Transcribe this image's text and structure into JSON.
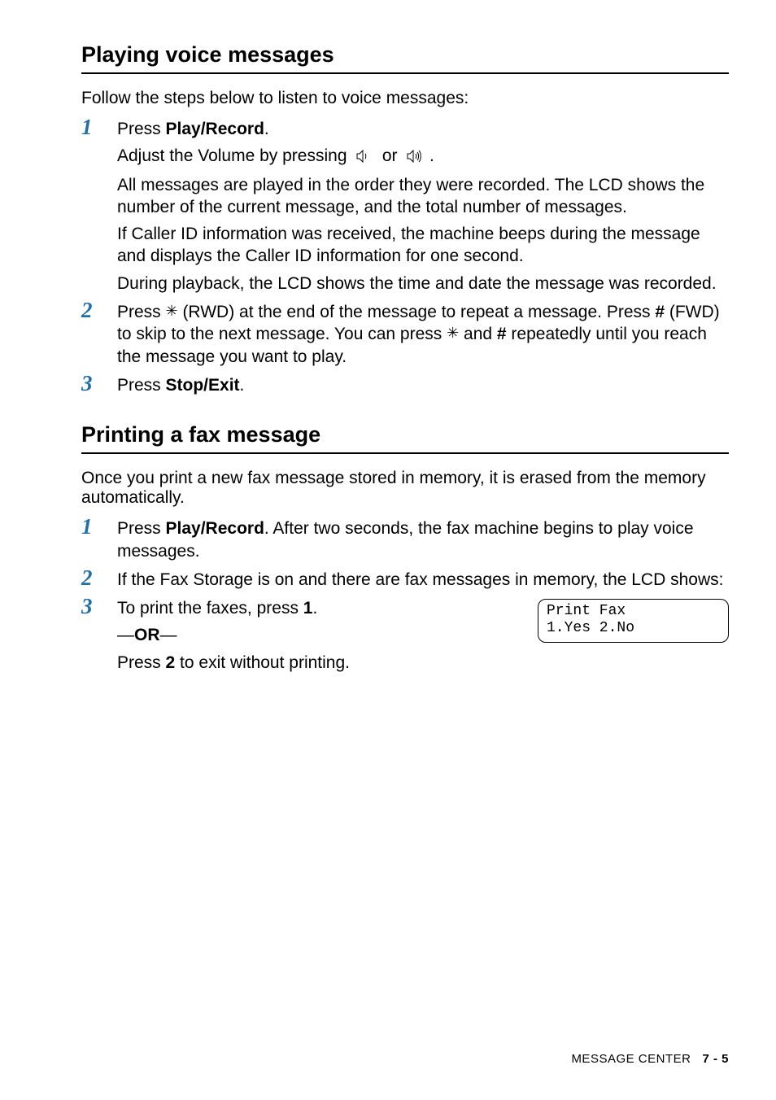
{
  "sections": {
    "playing": {
      "title": "Playing voice messages",
      "lead": "Follow the steps below to listen to voice messages:",
      "steps": [
        {
          "num": "1",
          "lines": [
            {
              "html": "Press <b>Play/Record</b>."
            },
            {
              "html": "Adjust the Volume by pressing  __SPK_LOW__  or  __SPK_HIGH__ ."
            },
            {
              "html": "All messages are played in the order they were recorded. The LCD shows the number of the current message, and the total number of messages."
            },
            {
              "html": "If Caller ID information was received, the machine beeps during the message and displays the Caller ID information for one second."
            },
            {
              "html": "During playback, the LCD shows the time and date the message was recorded."
            }
          ]
        },
        {
          "num": "2",
          "lines": [
            {
              "html": "Press <span class='star'>✳</span> (RWD) at the end of the message to repeat a message. Press <b>#</b> (FWD) to skip to the next message. You can press <span class='star'>✳</span> and <b>#</b> repeatedly until you reach the message you want to play."
            }
          ]
        },
        {
          "num": "3",
          "lines": [
            {
              "html": "Press <b>Stop/Exit</b>."
            }
          ]
        }
      ]
    },
    "printing": {
      "title": "Printing a fax message",
      "lead": "Once you print a new fax message stored in memory, it is erased from the memory automatically.",
      "steps": [
        {
          "num": "1",
          "lines": [
            {
              "html": "Press <b>Play/Record</b>. After two seconds, the fax machine begins to play voice messages."
            }
          ]
        },
        {
          "num": "2",
          "lines": [
            {
              "html": "If the Fax Storage is on and there are fax messages in memory, the LCD shows:"
            }
          ]
        },
        {
          "num": "3",
          "lcd": {
            "line1": "Print Fax",
            "line2": "1.Yes 2.No"
          },
          "lines": [
            {
              "html": "To print the faxes, press <b>1</b>."
            },
            {
              "html": "—<b>OR</b>—"
            },
            {
              "html": "Press <b>2</b> to exit without printing."
            }
          ]
        }
      ]
    }
  },
  "footer": {
    "label": "MESSAGE CENTER",
    "page": "7 - 5"
  },
  "icons": {
    "speaker_low_svg": "<svg width='20' height='16' viewBox='0 0 20 16'><path d='M1 5h3l4-4v14l-4-4H1z' fill='none' stroke='#000' stroke-width='1'/><path d='M11 5c1 1 1 5 0 6' fill='none' stroke='#000' stroke-width='1'/></svg>",
    "speaker_high_svg": "<svg width='22' height='16' viewBox='0 0 22 16'><path d='M1 5h3l4-4v14l-4-4H1z' fill='none' stroke='#000' stroke-width='1'/><path d='M11 5c1 1 1 5 0 6' fill='none' stroke='#000' stroke-width='1'/><path d='M13 3c2 2 2 8 0 10' fill='none' stroke='#000' stroke-width='1'/><path d='M15 1c3 3 3 11 0 14' fill='none' stroke='#000' stroke-width='1'/></svg>"
  },
  "colors": {
    "step_num": "#1f6fa8",
    "text": "#000000",
    "bg": "#ffffff"
  },
  "typography": {
    "body_pt": 21,
    "heading_pt": 27,
    "stepnum_pt": 27,
    "lcd_font": "Courier New"
  }
}
